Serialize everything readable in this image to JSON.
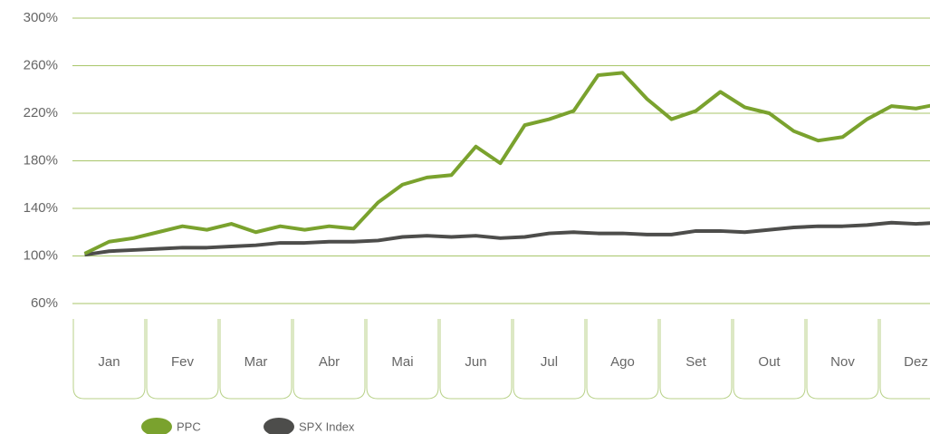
{
  "chart_data": {
    "type": "line",
    "categories": [
      null,
      "Jan",
      null,
      null,
      "Fev",
      null,
      null,
      "Mar",
      null,
      null,
      "Abr",
      null,
      null,
      "Mai",
      null,
      null,
      "Jun",
      null,
      null,
      "Jul",
      null,
      null,
      "Ago",
      null,
      null,
      "Set",
      null,
      null,
      "Out",
      null,
      null,
      "Nov",
      null,
      null,
      "Dez",
      null
    ],
    "series": [
      {
        "name": "PPC",
        "color": "#7aa22e",
        "values": [
          102,
          112,
          115,
          120,
          125,
          122,
          127,
          120,
          125,
          122,
          125,
          123,
          145,
          160,
          166,
          168,
          192,
          178,
          210,
          215,
          222,
          252,
          254,
          232,
          215,
          222,
          238,
          225,
          220,
          205,
          197,
          200,
          215,
          226,
          224,
          228
        ]
      },
      {
        "name": "SPX Index",
        "color": "#4d4d4b",
        "values": [
          101,
          104,
          105,
          106,
          107,
          107,
          108,
          109,
          111,
          111,
          112,
          112,
          113,
          116,
          117,
          116,
          117,
          115,
          116,
          119,
          120,
          119,
          119,
          118,
          118,
          121,
          121,
          120,
          122,
          124,
          125,
          125,
          126,
          128,
          127,
          128
        ]
      }
    ],
    "ylim": [
      60,
      300
    ],
    "yticks": [
      {
        "value": 60,
        "label": "60%"
      },
      {
        "value": 100,
        "label": "100%"
      },
      {
        "value": 140,
        "label": "140%"
      },
      {
        "value": 180,
        "label": "180%"
      },
      {
        "value": 220,
        "label": "220%"
      },
      {
        "value": 260,
        "label": "260%"
      },
      {
        "value": 300,
        "label": "300%"
      }
    ],
    "grid": true
  }
}
